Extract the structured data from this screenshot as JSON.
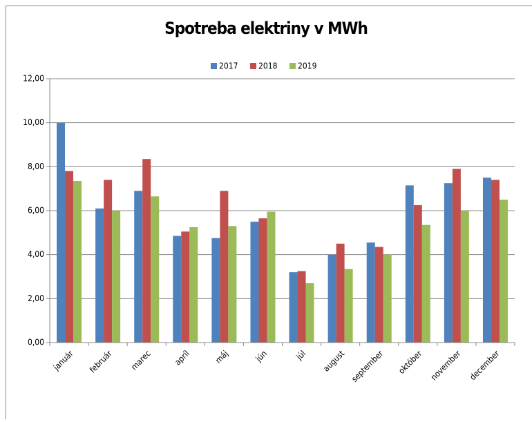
{
  "chart_data": {
    "type": "bar",
    "title": "Spotreba elektriny v MWh",
    "categories": [
      "január",
      "február",
      "marec",
      "apríl",
      "máj",
      "jún",
      "júl",
      "august",
      "september",
      "október",
      "november",
      "december"
    ],
    "series": [
      {
        "name": "2017",
        "color": "#4f81bd",
        "values": [
          10.0,
          6.1,
          6.9,
          4.85,
          4.75,
          5.5,
          3.2,
          4.0,
          4.55,
          7.15,
          7.25,
          7.5
        ]
      },
      {
        "name": "2018",
        "color": "#c0504d",
        "values": [
          7.8,
          7.4,
          8.35,
          5.05,
          6.9,
          5.65,
          3.25,
          4.5,
          4.35,
          6.25,
          7.9,
          7.4
        ]
      },
      {
        "name": "2019",
        "color": "#9bbb59",
        "values": [
          7.35,
          6.0,
          6.65,
          5.25,
          5.3,
          5.95,
          2.7,
          3.35,
          4.0,
          5.35,
          6.0,
          6.5
        ]
      }
    ],
    "ylim": [
      0,
      12
    ],
    "yticks": [
      {
        "value": 0,
        "label": "0,00"
      },
      {
        "value": 2,
        "label": "2,00"
      },
      {
        "value": 4,
        "label": "4,00"
      },
      {
        "value": 6,
        "label": "6,00"
      },
      {
        "value": 8,
        "label": "8,00"
      },
      {
        "value": 10,
        "label": "10,00"
      },
      {
        "value": 12,
        "label": "12,00"
      }
    ],
    "grid": true,
    "legend": "top"
  }
}
